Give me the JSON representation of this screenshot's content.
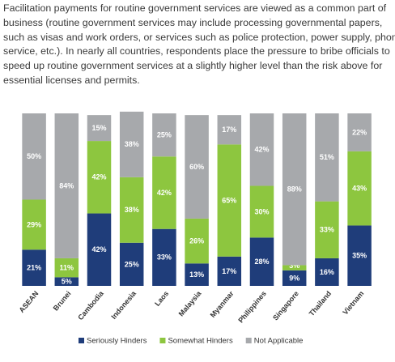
{
  "intro": [
    "Facilitation payments for routine government services are viewed as a common part of",
    "business (routine government services may include processing governmental papers,",
    "such as visas and work orders, or services such as police protection, power supply, phone",
    "service, etc.). In nearly all countries, respondents place the pressure to bribe officials to",
    "speed up routine government services at a slightly higher level than the risk above for",
    "essential licenses and permits."
  ],
  "chart_data": {
    "type": "stacked_bar",
    "categories": [
      "ASEAN",
      "Brunei",
      "Cambodia",
      "Indonesia",
      "Laos",
      "Malaysia",
      "Myanmar",
      "Philippines",
      "Singapore",
      "Thailand",
      "Vietnam"
    ],
    "series": [
      {
        "name": "Seriously Hinders",
        "color": "#1f3d7a",
        "values": [
          21,
          5,
          42,
          25,
          33,
          13,
          17,
          28,
          9,
          16,
          35
        ],
        "value_labels": [
          "21%",
          "5%",
          "42%",
          "25%",
          "33%",
          "13%",
          "17%",
          "28%",
          "9%",
          "16%",
          "35%"
        ]
      },
      {
        "name": "Somewhat Hinders",
        "color": "#8dc63f",
        "values": [
          29,
          11,
          42,
          38,
          42,
          26,
          65,
          30,
          3,
          33,
          43
        ],
        "value_labels": [
          "29%",
          "11%",
          "42%",
          "38%",
          "42%",
          "26%",
          "65%",
          "30%",
          "3%",
          "33%",
          "43%"
        ]
      },
      {
        "name": "Not Applicable",
        "color": "#a7a9ac",
        "values": [
          50,
          84,
          15,
          38,
          25,
          60,
          17,
          42,
          88,
          51,
          22
        ],
        "value_labels": [
          "50%",
          "84%",
          "15%",
          "38%",
          "25%",
          "60%",
          "17%",
          "42%",
          "88%",
          "51%",
          "22%"
        ]
      }
    ],
    "legend": "bottom"
  }
}
